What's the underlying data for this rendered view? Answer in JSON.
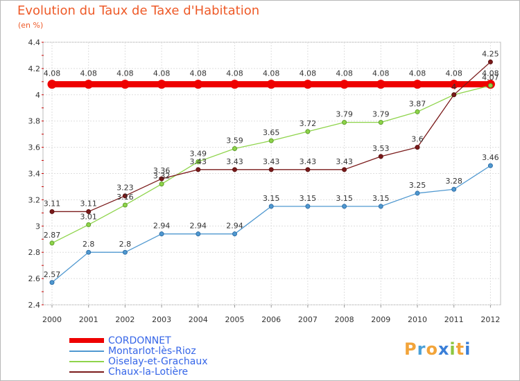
{
  "title": "Evolution du Taux de Taxe d'Habitation",
  "subtitle": "(en %)",
  "logo": {
    "text": "Proxiti",
    "colors": [
      "#f2a43a",
      "#4aa0d8",
      "#f2a43a",
      "#3a7fd8",
      "#8cc63f",
      "#f2a43a",
      "#3a7fd8"
    ]
  },
  "chart_data": {
    "type": "line",
    "title": "Evolution du Taux de Taxe d'Habitation",
    "ylabel": "(en %)",
    "xlabel": "",
    "ylim": [
      2.4,
      4.4
    ],
    "yticks": [
      2.4,
      2.6,
      2.8,
      3,
      3.2,
      3.4,
      3.6,
      3.8,
      4,
      4.2,
      4.4
    ],
    "grid": true,
    "legend_position": "bottom-left",
    "categories": [
      "2000",
      "2001",
      "2002",
      "2003",
      "2004",
      "2005",
      "2006",
      "2007",
      "2008",
      "2009",
      "2010",
      "2011",
      "2012"
    ],
    "series": [
      {
        "name": "CORDONNET",
        "color": "#ee0000",
        "values": [
          4.08,
          4.08,
          4.08,
          4.08,
          4.08,
          4.08,
          4.08,
          4.08,
          4.08,
          4.08,
          4.08,
          4.08,
          4.08
        ],
        "labels": [
          "4.08",
          "4.08",
          "4.08",
          "4.08",
          "4.08",
          "4.08",
          "4.08",
          "4.08",
          "4.08",
          "4.08",
          "4.08",
          "4.08",
          "4.08"
        ]
      },
      {
        "name": "Montarlot-lès-Rioz",
        "color": "#4f98d0",
        "values": [
          2.57,
          2.8,
          2.8,
          2.94,
          2.94,
          2.94,
          3.15,
          3.15,
          3.15,
          3.15,
          3.25,
          3.28,
          3.46
        ],
        "labels": [
          "2.57",
          "2.8",
          "2.8",
          "2.94",
          "2.94",
          "2.94",
          "3.15",
          "3.15",
          "3.15",
          "3.15",
          "3.25",
          "3.28",
          "3.46"
        ]
      },
      {
        "name": "Oiselay-et-Grachaux",
        "color": "#8ed44a",
        "values": [
          2.87,
          3.01,
          3.16,
          3.32,
          3.49,
          3.59,
          3.65,
          3.72,
          3.79,
          3.79,
          3.87,
          4.0,
          4.07
        ],
        "labels": [
          "2.87",
          "3.01",
          "3.16",
          "3.32",
          "3.49",
          "3.59",
          "3.65",
          "3.72",
          "3.79",
          "3.79",
          "3.87",
          "4",
          "4.07"
        ]
      },
      {
        "name": "Chaux-la-Lotière",
        "color": "#7a1a1a",
        "values": [
          3.11,
          3.11,
          3.23,
          3.36,
          3.43,
          3.43,
          3.43,
          3.43,
          3.43,
          3.53,
          3.6,
          4.0,
          4.25
        ],
        "labels": [
          "3.11",
          "3.11",
          "3.23",
          "3.36",
          "3.43",
          "3.43",
          "3.43",
          "3.43",
          "3.43",
          "3.53",
          "3.6",
          "4",
          "4.25"
        ]
      }
    ]
  }
}
